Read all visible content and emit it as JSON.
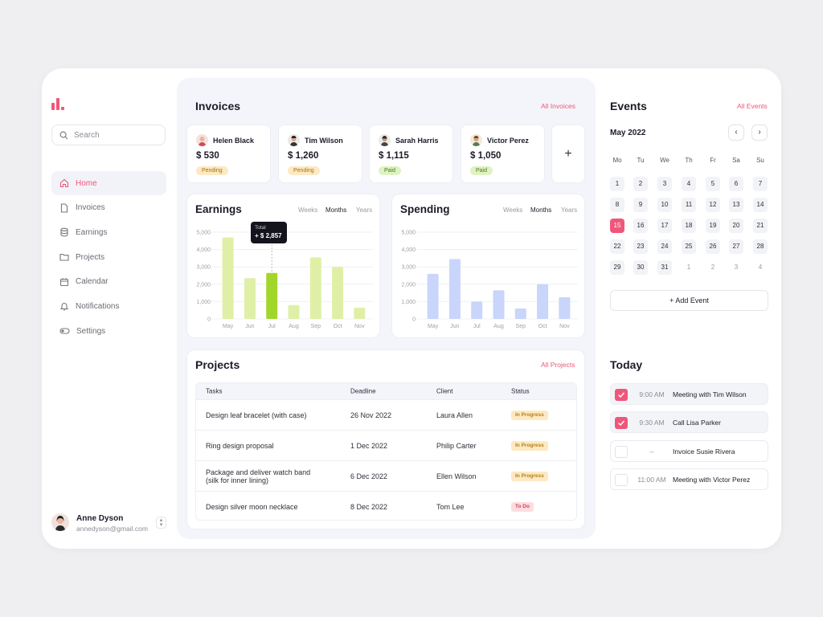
{
  "sidebar": {
    "search_placeholder": "Search",
    "nav": [
      {
        "label": "Home",
        "icon": "home-icon",
        "active": true
      },
      {
        "label": "Invoices",
        "icon": "file-icon"
      },
      {
        "label": "Earnings",
        "icon": "database-icon"
      },
      {
        "label": "Projects",
        "icon": "folder-icon"
      },
      {
        "label": "Calendar",
        "icon": "calendar-icon"
      },
      {
        "label": "Notifications",
        "icon": "bell-icon"
      },
      {
        "label": "Settings",
        "icon": "toggle-icon"
      }
    ],
    "user": {
      "name": "Anne Dyson",
      "email": "annedyson@gmail.com"
    }
  },
  "invoices": {
    "title": "Invoices",
    "link": "All Invoices",
    "cards": [
      {
        "name": "Helen Black",
        "amount": "$ 530",
        "status": "Pending"
      },
      {
        "name": "Tim Wilson",
        "amount": "$ 1,260",
        "status": "Pending"
      },
      {
        "name": "Sarah Harris",
        "amount": "$ 1,115",
        "status": "Paid"
      },
      {
        "name": "Victor Perez",
        "amount": "$ 1,050",
        "status": "Paid"
      }
    ],
    "add_label": "+"
  },
  "earnings": {
    "title": "Earnings",
    "ranges": [
      "Weeks",
      "Months",
      "Years"
    ],
    "tooltip": {
      "label": "Total",
      "value": "+ $ 2,857"
    }
  },
  "spending": {
    "title": "Spending",
    "ranges": [
      "Weeks",
      "Months",
      "Years"
    ]
  },
  "chart_data": [
    {
      "type": "bar",
      "title": "Earnings",
      "categories": [
        "May",
        "Jun",
        "Jul",
        "Aug",
        "Sep",
        "Oct",
        "Nov"
      ],
      "values": [
        4700,
        2350,
        2650,
        800,
        3550,
        3000,
        650
      ],
      "highlight_index": 2,
      "yticks": [
        "5,000",
        "4,000",
        "3,000",
        "2,000",
        "1,000",
        "0"
      ],
      "ylim": [
        0,
        5000
      ],
      "colors": {
        "bar": "#dff0a6",
        "highlight": "#a3d62a"
      }
    },
    {
      "type": "bar",
      "title": "Spending",
      "categories": [
        "May",
        "Jun",
        "Jul",
        "Aug",
        "Sep",
        "Oct",
        "Nov"
      ],
      "values": [
        2600,
        3450,
        1000,
        1650,
        600,
        2000,
        1250
      ],
      "yticks": [
        "5,000",
        "4,000",
        "3,000",
        "2,000",
        "1,000",
        "0"
      ],
      "ylim": [
        0,
        5000
      ],
      "colors": {
        "bar": "#c9d5fb"
      }
    }
  ],
  "projects": {
    "title": "Projects",
    "link": "All Projects",
    "columns": [
      "Tasks",
      "Deadline",
      "Client",
      "Status"
    ],
    "rows": [
      {
        "task": "Design leaf bracelet (with case)",
        "deadline": "26 Nov 2022",
        "client": "Laura Allen",
        "status": "In Progress"
      },
      {
        "task": "Ring design proposal",
        "deadline": "1 Dec 2022",
        "client": "Philip Carter",
        "status": "In Progress"
      },
      {
        "task": "Package and deliver watch band",
        "task2": "(silk for inner lining)",
        "deadline": "6 Dec 2022",
        "client": "Ellen Wilson",
        "status": "In Progress"
      },
      {
        "task": "Design silver moon necklace",
        "deadline": "8 Dec 2022",
        "client": "Tom Lee",
        "status": "To Do"
      }
    ]
  },
  "events": {
    "title": "Events",
    "link": "All Events",
    "month": "May 2022",
    "weekdays": [
      "Mo",
      "Tu",
      "We",
      "Th",
      "Fr",
      "Sa",
      "Su"
    ],
    "days": [
      "1",
      "2",
      "3",
      "4",
      "5",
      "6",
      "7",
      "8",
      "9",
      "10",
      "11",
      "12",
      "13",
      "14",
      "15",
      "16",
      "17",
      "18",
      "19",
      "20",
      "21",
      "22",
      "23",
      "24",
      "25",
      "26",
      "27",
      "28",
      "29",
      "30",
      "31",
      "1",
      "2",
      "3",
      "4"
    ],
    "today_day": "15",
    "add_label": "Add Event"
  },
  "today": {
    "title": "Today",
    "items": [
      {
        "time": "9:00 AM",
        "text": "Meeting with Tim Wilson",
        "done": true
      },
      {
        "time": "9:30 AM",
        "text": "Call Lisa Parker",
        "done": true
      },
      {
        "time": "–",
        "text": "Invoice Susie Rivera",
        "done": false
      },
      {
        "time": "11:00 AM",
        "text": "Meeting with Victor Perez",
        "done": false
      }
    ]
  }
}
